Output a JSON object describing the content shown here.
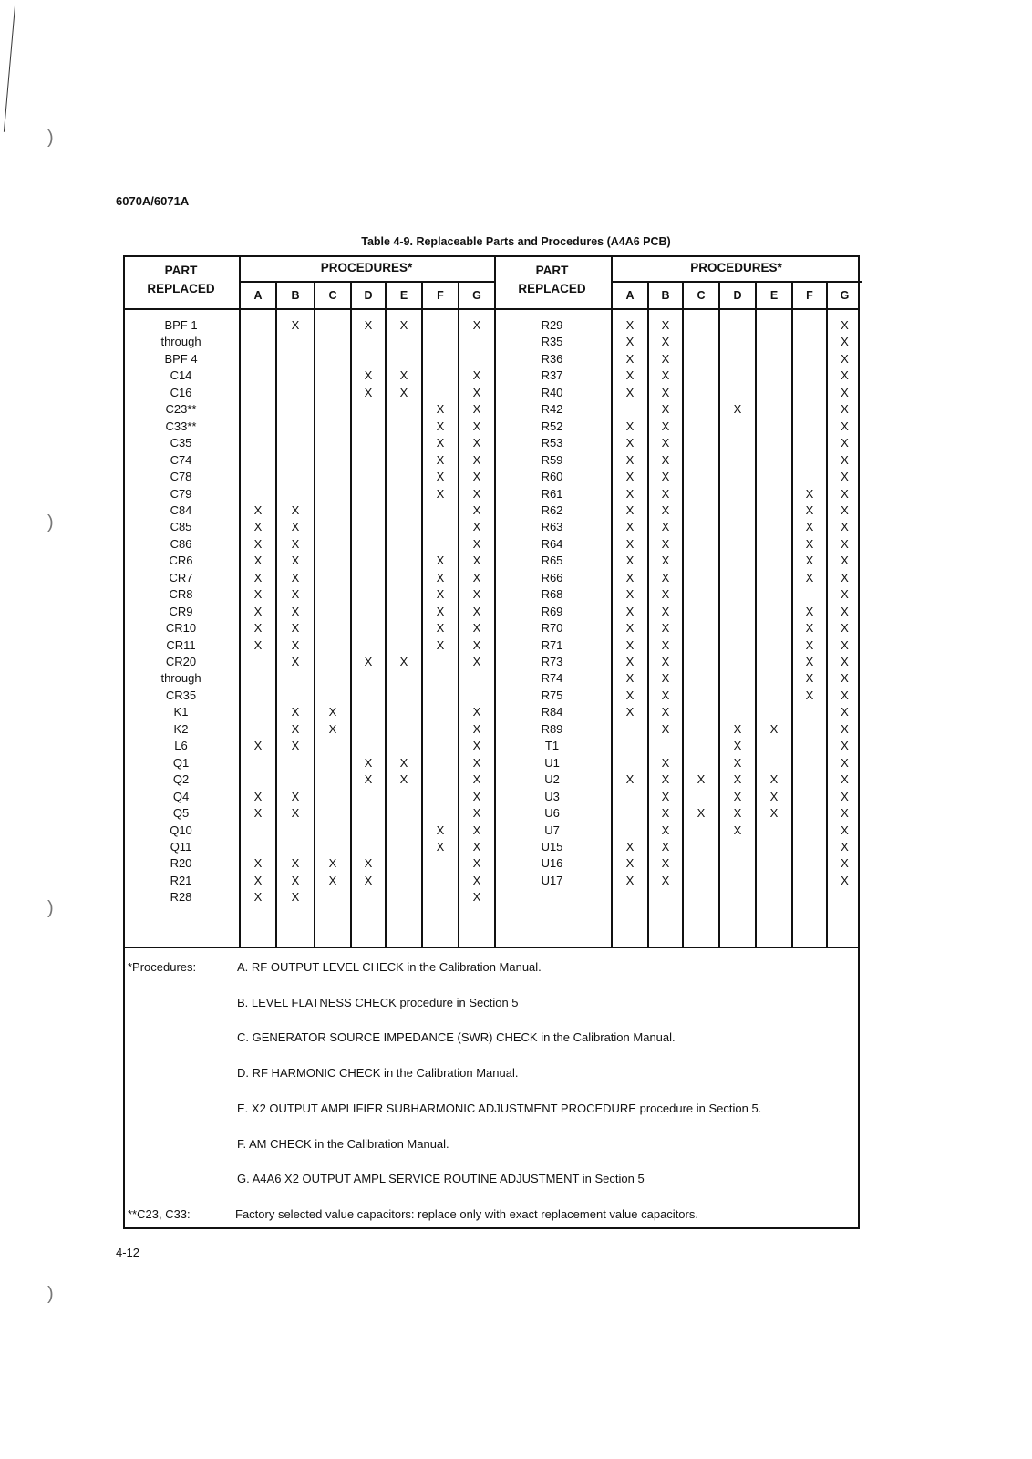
{
  "document_id": "6070A/6071A",
  "table_title": "Table 4-9. Replaceable Parts and Procedures (A4A6 PCB)",
  "headers": {
    "part_replaced": [
      "PART",
      "REPLACED"
    ],
    "procedures": "PROCEDURES*",
    "columns": [
      "A",
      "B",
      "C",
      "D",
      "E",
      "F",
      "G"
    ]
  },
  "left_rows": [
    {
      "part": "BPF 1",
      "marks": "-X-XX-X"
    },
    {
      "part": "through",
      "marks": "-------"
    },
    {
      "part": "BPF 4",
      "marks": "-------"
    },
    {
      "part": "C14",
      "marks": "---XX-X"
    },
    {
      "part": "C16",
      "marks": "---XX-X"
    },
    {
      "part": "C23**",
      "marks": "-----XX"
    },
    {
      "part": "C33**",
      "marks": "-----XX"
    },
    {
      "part": "C35",
      "marks": "-----XX"
    },
    {
      "part": "C74",
      "marks": "-----XX"
    },
    {
      "part": "C78",
      "marks": "-----XX"
    },
    {
      "part": "C79",
      "marks": "-----XX"
    },
    {
      "part": "C84",
      "marks": "XX----X"
    },
    {
      "part": "C85",
      "marks": "XX----X"
    },
    {
      "part": "C86",
      "marks": "XX----X"
    },
    {
      "part": "CR6",
      "marks": "XX---XX"
    },
    {
      "part": "CR7",
      "marks": "XX---XX"
    },
    {
      "part": "CR8",
      "marks": "XX---XX"
    },
    {
      "part": "CR9",
      "marks": "XX---XX"
    },
    {
      "part": "CR10",
      "marks": "XX---XX"
    },
    {
      "part": "CR11",
      "marks": "XX---XX"
    },
    {
      "part": "CR20",
      "marks": "-X-XX-X"
    },
    {
      "part": "through",
      "marks": "-------"
    },
    {
      "part": "CR35",
      "marks": "-------"
    },
    {
      "part": "K1",
      "marks": "-XX---X"
    },
    {
      "part": "K2",
      "marks": "-XX---X"
    },
    {
      "part": "L6",
      "marks": "XX----X"
    },
    {
      "part": "Q1",
      "marks": "---XX-X"
    },
    {
      "part": "Q2",
      "marks": "---XX-X"
    },
    {
      "part": "Q4",
      "marks": "XX----X"
    },
    {
      "part": "Q5",
      "marks": "XX----X"
    },
    {
      "part": "Q10",
      "marks": "-----XX"
    },
    {
      "part": "Q11",
      "marks": "-----XX"
    },
    {
      "part": "R20",
      "marks": "XXXX--X"
    },
    {
      "part": "R21",
      "marks": "XXXX--X"
    },
    {
      "part": "R28",
      "marks": "XX----X"
    }
  ],
  "right_rows": [
    {
      "part": "R29",
      "marks": "XX----X"
    },
    {
      "part": "R35",
      "marks": "XX----X"
    },
    {
      "part": "R36",
      "marks": "XX----X"
    },
    {
      "part": "R37",
      "marks": "XX----X"
    },
    {
      "part": "R40",
      "marks": "XX----X"
    },
    {
      "part": "R42",
      "marks": "-X-X--X"
    },
    {
      "part": "R52",
      "marks": "XX----X"
    },
    {
      "part": "R53",
      "marks": "XX----X"
    },
    {
      "part": "R59",
      "marks": "XX----X"
    },
    {
      "part": "R60",
      "marks": "XX----X"
    },
    {
      "part": "R61",
      "marks": "XX---XX"
    },
    {
      "part": "R62",
      "marks": "XX---XX"
    },
    {
      "part": "R63",
      "marks": "XX---XX"
    },
    {
      "part": "R64",
      "marks": "XX---XX"
    },
    {
      "part": "R65",
      "marks": "XX---XX"
    },
    {
      "part": "R66",
      "marks": "XX---XX"
    },
    {
      "part": "R68",
      "marks": "XX----X"
    },
    {
      "part": "R69",
      "marks": "XX---XX"
    },
    {
      "part": "R70",
      "marks": "XX---XX"
    },
    {
      "part": "R71",
      "marks": "XX---XX"
    },
    {
      "part": "R73",
      "marks": "XX---XX"
    },
    {
      "part": "R74",
      "marks": "XX---XX"
    },
    {
      "part": "R75",
      "marks": "XX---XX"
    },
    {
      "part": "R84",
      "marks": "XX----X"
    },
    {
      "part": "R89",
      "marks": "-X-XX-X"
    },
    {
      "part": "T1",
      "marks": "---X--X"
    },
    {
      "part": "U1",
      "marks": "-X-X--X"
    },
    {
      "part": "U2",
      "marks": "XXXXX-X"
    },
    {
      "part": "U3",
      "marks": "-X-XX-X"
    },
    {
      "part": "U6",
      "marks": "-XXXX-X"
    },
    {
      "part": "U7",
      "marks": "-X-X--X"
    },
    {
      "part": "U15",
      "marks": "XX----X"
    },
    {
      "part": "U16",
      "marks": "XX----X"
    },
    {
      "part": "U17",
      "marks": "XX----X"
    }
  ],
  "footnotes": {
    "procedures_label": "*Procedures:",
    "procedures": [
      "A. RF OUTPUT LEVEL CHECK in the Calibration Manual.",
      "B. LEVEL FLATNESS CHECK procedure in Section 5",
      "C. GENERATOR SOURCE IMPEDANCE (SWR) CHECK in the Calibration Manual.",
      "D. RF HARMONIC CHECK in the Calibration Manual.",
      "E. X2 OUTPUT AMPLIFIER SUBHARMONIC ADJUSTMENT PROCEDURE procedure in Section 5.",
      "F. AM CHECK in the Calibration Manual.",
      "G. A4A6 X2 OUTPUT AMPL SERVICE ROUTINE ADJUSTMENT in Section 5"
    ],
    "capacitor_label": "**C23, C33:",
    "capacitor_note": "Factory selected value capacitors: replace only with exact replacement value capacitors."
  },
  "page_number": "4-12"
}
